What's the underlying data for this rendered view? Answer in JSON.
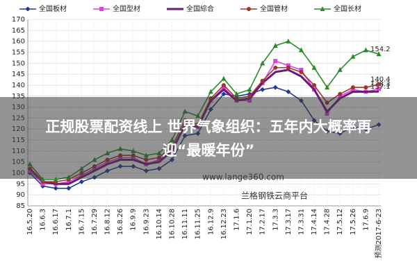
{
  "chart_data": {
    "type": "line",
    "categories": [
      "16.5.20",
      "16.6.3",
      "16.6.17",
      "16.7.1",
      "16.7.15",
      "16.7.29",
      "16.8.12",
      "16.8.26",
      "16.9.9",
      "16.9.23",
      "16.10.14",
      "16.10.28",
      "16.11.11",
      "16.11.25",
      "16.12.9",
      "16.12.23",
      "17.1.6",
      "17.1.20",
      "17.2.17",
      "17.3.3",
      "17.3.17",
      "17.3.31",
      "17.4.14",
      "17.4.28",
      "17.5.12",
      "17.5.26",
      "17.6.9",
      "预测2017-6-23"
    ],
    "series": [
      {
        "name": "全国板材",
        "color": "#1f3a93",
        "marker": "diamond",
        "label_last": false,
        "values": [
          100,
          94,
          93,
          93,
          96,
          98,
          101,
          103,
          103,
          101,
          102,
          106,
          117,
          118,
          129,
          136,
          135,
          136,
          138,
          139,
          137,
          133,
          124,
          119,
          118,
          121,
          120,
          122
        ]
      },
      {
        "name": "全国型材",
        "color": "#e040e0",
        "marker": "square",
        "label_last": true,
        "values": [
          101,
          95,
          95,
          96,
          99,
          102,
          105,
          107,
          107,
          104,
          106,
          110,
          122,
          121,
          133,
          139,
          133,
          133,
          141,
          151,
          149,
          147,
          138,
          127,
          135,
          138,
          137,
          138.3
        ]
      },
      {
        "name": "全国綜合",
        "color": "#6a1b7a",
        "marker": "none",
        "label_last": true,
        "values": [
          102,
          96,
          95,
          95,
          98,
          101,
          104,
          106,
          106,
          104,
          105,
          110,
          122,
          121,
          133,
          138,
          133,
          134,
          141,
          146,
          147,
          144,
          138,
          128,
          134,
          137,
          137,
          137.1
        ]
      },
      {
        "name": "全国管材",
        "color": "#a0342a",
        "marker": "circle",
        "label_last": true,
        "values": [
          102,
          96,
          96,
          97,
          100,
          103,
          106,
          108,
          108,
          106,
          107,
          112,
          124,
          122,
          134,
          140,
          134,
          135,
          142,
          148,
          148,
          146,
          140,
          132,
          136,
          139,
          139,
          140.4
        ]
      },
      {
        "name": "全国长材",
        "color": "#2a8a2a",
        "marker": "triangle",
        "label_last": true,
        "values": [
          104,
          97,
          97,
          98,
          102,
          106,
          109,
          111,
          110,
          108,
          109,
          115,
          128,
          126,
          137,
          143,
          136,
          138,
          150,
          158,
          160,
          156,
          148,
          139,
          147,
          153,
          156,
          154.2
        ]
      }
    ],
    "ylim": [
      85,
      170
    ],
    "yticks": [
      85,
      90,
      95,
      100,
      105,
      110,
      115,
      120,
      125,
      130,
      135,
      140,
      145,
      150,
      155,
      160,
      165,
      170
    ],
    "grid": true
  },
  "overlay": {
    "headline": [
      "正规股票配资线上 世界气象组织：五年内大概率再",
      "迎“最暖年份”"
    ],
    "watermark": [
      "www.lange360.com",
      "兰格钢铁云商平台"
    ]
  }
}
